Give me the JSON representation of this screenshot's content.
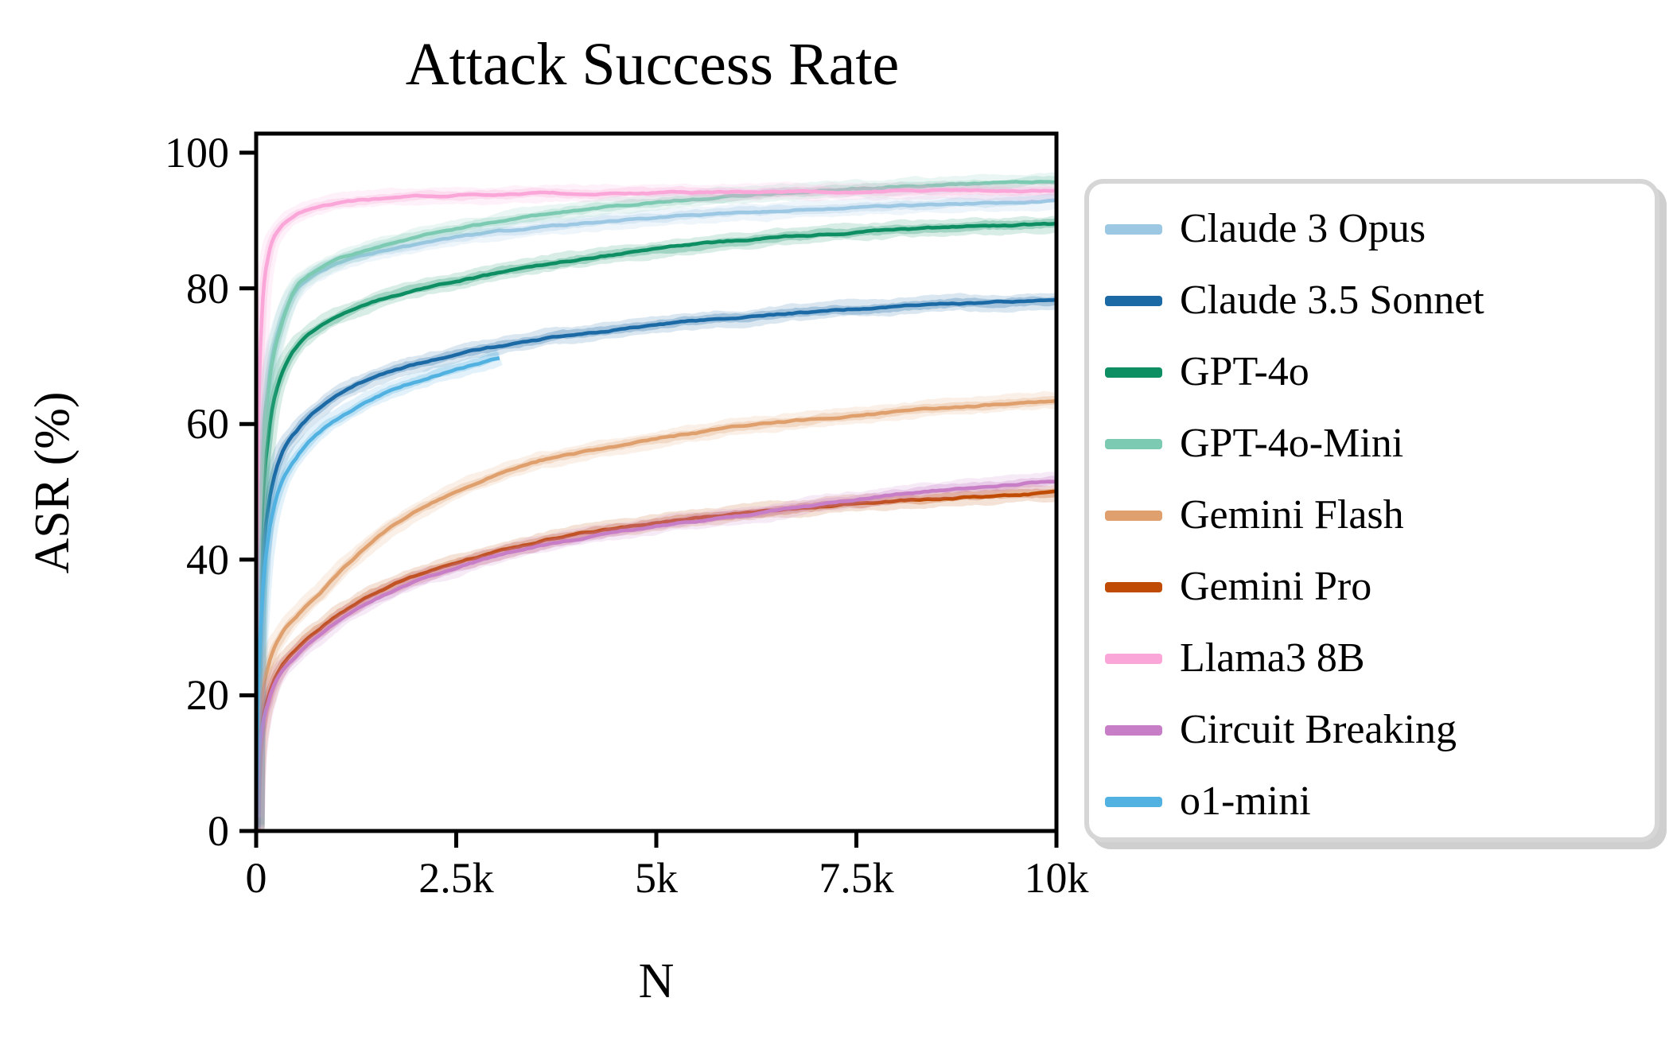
{
  "chart_data": {
    "type": "line",
    "title": "Attack Success Rate",
    "xlabel": "N",
    "ylabel": "ASR (%)",
    "xlim": [
      0,
      10000
    ],
    "ylim": [
      0,
      103
    ],
    "grid": false,
    "legend_position": "center right outside",
    "background_color": "#ffffff",
    "axis_color": "#000000",
    "xticks": [
      {
        "value": 0,
        "label": "0"
      },
      {
        "value": 2500,
        "label": "2.5k"
      },
      {
        "value": 5000,
        "label": "5k"
      },
      {
        "value": 7500,
        "label": "7.5k"
      },
      {
        "value": 10000,
        "label": "10k"
      }
    ],
    "yticks": [
      {
        "value": 0,
        "label": "0"
      },
      {
        "value": 20,
        "label": "20"
      },
      {
        "value": 40,
        "label": "40"
      },
      {
        "value": 60,
        "label": "60"
      },
      {
        "value": 80,
        "label": "80"
      },
      {
        "value": 100,
        "label": "100"
      }
    ],
    "series": [
      {
        "name": "Claude 3 Opus",
        "color": "#9dc8e4",
        "points": [
          [
            1,
            1
          ],
          [
            3,
            7
          ],
          [
            6,
            14
          ],
          [
            10,
            21
          ],
          [
            20,
            32
          ],
          [
            40,
            44
          ],
          [
            70,
            53
          ],
          [
            100,
            60
          ],
          [
            150,
            66
          ],
          [
            200,
            70
          ],
          [
            300,
            74.5
          ],
          [
            500,
            80
          ],
          [
            800,
            82.5
          ],
          [
            1200,
            84.5
          ],
          [
            1800,
            86
          ],
          [
            2500,
            87.5
          ],
          [
            3500,
            88.9
          ],
          [
            5000,
            90.4
          ],
          [
            6200,
            91.2
          ],
          [
            7500,
            91.9
          ],
          [
            8700,
            92.4
          ],
          [
            10000,
            92.9
          ]
        ]
      },
      {
        "name": "Claude 3.5 Sonnet",
        "color": "#1b6aa5",
        "points": [
          [
            1,
            0.5
          ],
          [
            3,
            4
          ],
          [
            6,
            9
          ],
          [
            10,
            14
          ],
          [
            20,
            22
          ],
          [
            40,
            31
          ],
          [
            70,
            38
          ],
          [
            100,
            43
          ],
          [
            150,
            48
          ],
          [
            200,
            51
          ],
          [
            300,
            55.5
          ],
          [
            500,
            59
          ],
          [
            800,
            62.5
          ],
          [
            1200,
            65.5
          ],
          [
            1800,
            68.2
          ],
          [
            2500,
            70.2
          ],
          [
            3500,
            72.4
          ],
          [
            5000,
            74.6
          ],
          [
            6200,
            75.9
          ],
          [
            7500,
            77
          ],
          [
            8700,
            77.7
          ],
          [
            10000,
            78.2
          ]
        ]
      },
      {
        "name": "GPT-4o",
        "color": "#0d8f63",
        "points": [
          [
            1,
            0.8
          ],
          [
            3,
            5
          ],
          [
            6,
            11
          ],
          [
            10,
            17
          ],
          [
            20,
            27
          ],
          [
            40,
            38
          ],
          [
            70,
            46
          ],
          [
            100,
            52
          ],
          [
            150,
            58
          ],
          [
            200,
            62.5
          ],
          [
            300,
            67
          ],
          [
            500,
            71.5
          ],
          [
            800,
            74.5
          ],
          [
            1200,
            76.8
          ],
          [
            1800,
            79.2
          ],
          [
            2500,
            81
          ],
          [
            3500,
            83.2
          ],
          [
            5000,
            85.8
          ],
          [
            6200,
            87.2
          ],
          [
            7500,
            88.3
          ],
          [
            8700,
            89
          ],
          [
            10000,
            89.5
          ]
        ]
      },
      {
        "name": "GPT-4o-Mini",
        "color": "#7dcab2",
        "points": [
          [
            1,
            0.8
          ],
          [
            3,
            6
          ],
          [
            6,
            13
          ],
          [
            10,
            20
          ],
          [
            20,
            31
          ],
          [
            40,
            43
          ],
          [
            70,
            52
          ],
          [
            100,
            59
          ],
          [
            150,
            65
          ],
          [
            200,
            69
          ],
          [
            300,
            74
          ],
          [
            500,
            80.5
          ],
          [
            800,
            83
          ],
          [
            1200,
            85
          ],
          [
            1800,
            87
          ],
          [
            2500,
            88.8
          ],
          [
            3500,
            90.8
          ],
          [
            5000,
            92.7
          ],
          [
            6200,
            93.8
          ],
          [
            7500,
            94.7
          ],
          [
            8700,
            95.3
          ],
          [
            10000,
            95.8
          ]
        ]
      },
      {
        "name": "Gemini Flash",
        "color": "#dfa06e",
        "points": [
          [
            1,
            0.3
          ],
          [
            3,
            2
          ],
          [
            6,
            5
          ],
          [
            10,
            8
          ],
          [
            20,
            12.5
          ],
          [
            40,
            16.5
          ],
          [
            70,
            19.5
          ],
          [
            100,
            22
          ],
          [
            150,
            24.5
          ],
          [
            200,
            26.2
          ],
          [
            300,
            28.6
          ],
          [
            500,
            31.5
          ],
          [
            800,
            35
          ],
          [
            1200,
            40
          ],
          [
            1800,
            45.8
          ],
          [
            2500,
            50
          ],
          [
            3500,
            54.5
          ],
          [
            5000,
            57.8
          ],
          [
            6200,
            59.8
          ],
          [
            7500,
            61.3
          ],
          [
            8700,
            62.4
          ],
          [
            10000,
            63.5
          ]
        ]
      },
      {
        "name": "Gemini Pro",
        "color": "#bf4b04",
        "points": [
          [
            1,
            0.2
          ],
          [
            3,
            1.5
          ],
          [
            6,
            3.5
          ],
          [
            10,
            6
          ],
          [
            20,
            9.5
          ],
          [
            40,
            13
          ],
          [
            70,
            15.5
          ],
          [
            100,
            17.5
          ],
          [
            150,
            19.8
          ],
          [
            200,
            21.5
          ],
          [
            300,
            24
          ],
          [
            500,
            26.8
          ],
          [
            800,
            30
          ],
          [
            1200,
            33.2
          ],
          [
            1800,
            36.8
          ],
          [
            2500,
            39.5
          ],
          [
            3500,
            42.6
          ],
          [
            5000,
            45.5
          ],
          [
            6200,
            47
          ],
          [
            7500,
            48.3
          ],
          [
            8700,
            49.1
          ],
          [
            10000,
            49.9
          ]
        ]
      },
      {
        "name": "Llama3 8B",
        "color": "#fba6d9",
        "points": [
          [
            1,
            2
          ],
          [
            3,
            14
          ],
          [
            6,
            28
          ],
          [
            10,
            40
          ],
          [
            20,
            55
          ],
          [
            40,
            67
          ],
          [
            70,
            76
          ],
          [
            100,
            81
          ],
          [
            150,
            84.8
          ],
          [
            200,
            87
          ],
          [
            300,
            89
          ],
          [
            500,
            91
          ],
          [
            800,
            92.2
          ],
          [
            1200,
            92.9
          ],
          [
            1800,
            93.4
          ],
          [
            2500,
            93.7
          ],
          [
            3500,
            94
          ],
          [
            5000,
            94.1
          ],
          [
            6200,
            94.2
          ],
          [
            7500,
            94.3
          ],
          [
            8700,
            94.35
          ],
          [
            10000,
            94.4
          ]
        ]
      },
      {
        "name": "Circuit Breaking",
        "color": "#c77ec6",
        "points": [
          [
            1,
            0.2
          ],
          [
            3,
            1.3
          ],
          [
            6,
            3
          ],
          [
            10,
            5.3
          ],
          [
            20,
            8.8
          ],
          [
            40,
            12.3
          ],
          [
            70,
            14.8
          ],
          [
            100,
            16.8
          ],
          [
            150,
            19
          ],
          [
            200,
            20.8
          ],
          [
            300,
            23.2
          ],
          [
            500,
            25.8
          ],
          [
            800,
            29
          ],
          [
            1200,
            32.3
          ],
          [
            1800,
            35.9
          ],
          [
            2500,
            38.8
          ],
          [
            3500,
            42
          ],
          [
            5000,
            45
          ],
          [
            6200,
            46.6
          ],
          [
            7500,
            48.9
          ],
          [
            8700,
            50.4
          ],
          [
            10000,
            51.6
          ]
        ]
      },
      {
        "name": "o1-mini",
        "color": "#51b1e1",
        "points": [
          [
            1,
            0.4
          ],
          [
            3,
            3
          ],
          [
            6,
            7
          ],
          [
            10,
            11
          ],
          [
            20,
            18
          ],
          [
            40,
            26
          ],
          [
            70,
            33
          ],
          [
            100,
            38
          ],
          [
            150,
            43.5
          ],
          [
            200,
            46.5
          ],
          [
            300,
            51
          ],
          [
            500,
            55
          ],
          [
            800,
            59
          ],
          [
            1200,
            62
          ],
          [
            1800,
            65.5
          ],
          [
            2500,
            68
          ],
          [
            3040,
            69.8
          ]
        ]
      }
    ]
  }
}
